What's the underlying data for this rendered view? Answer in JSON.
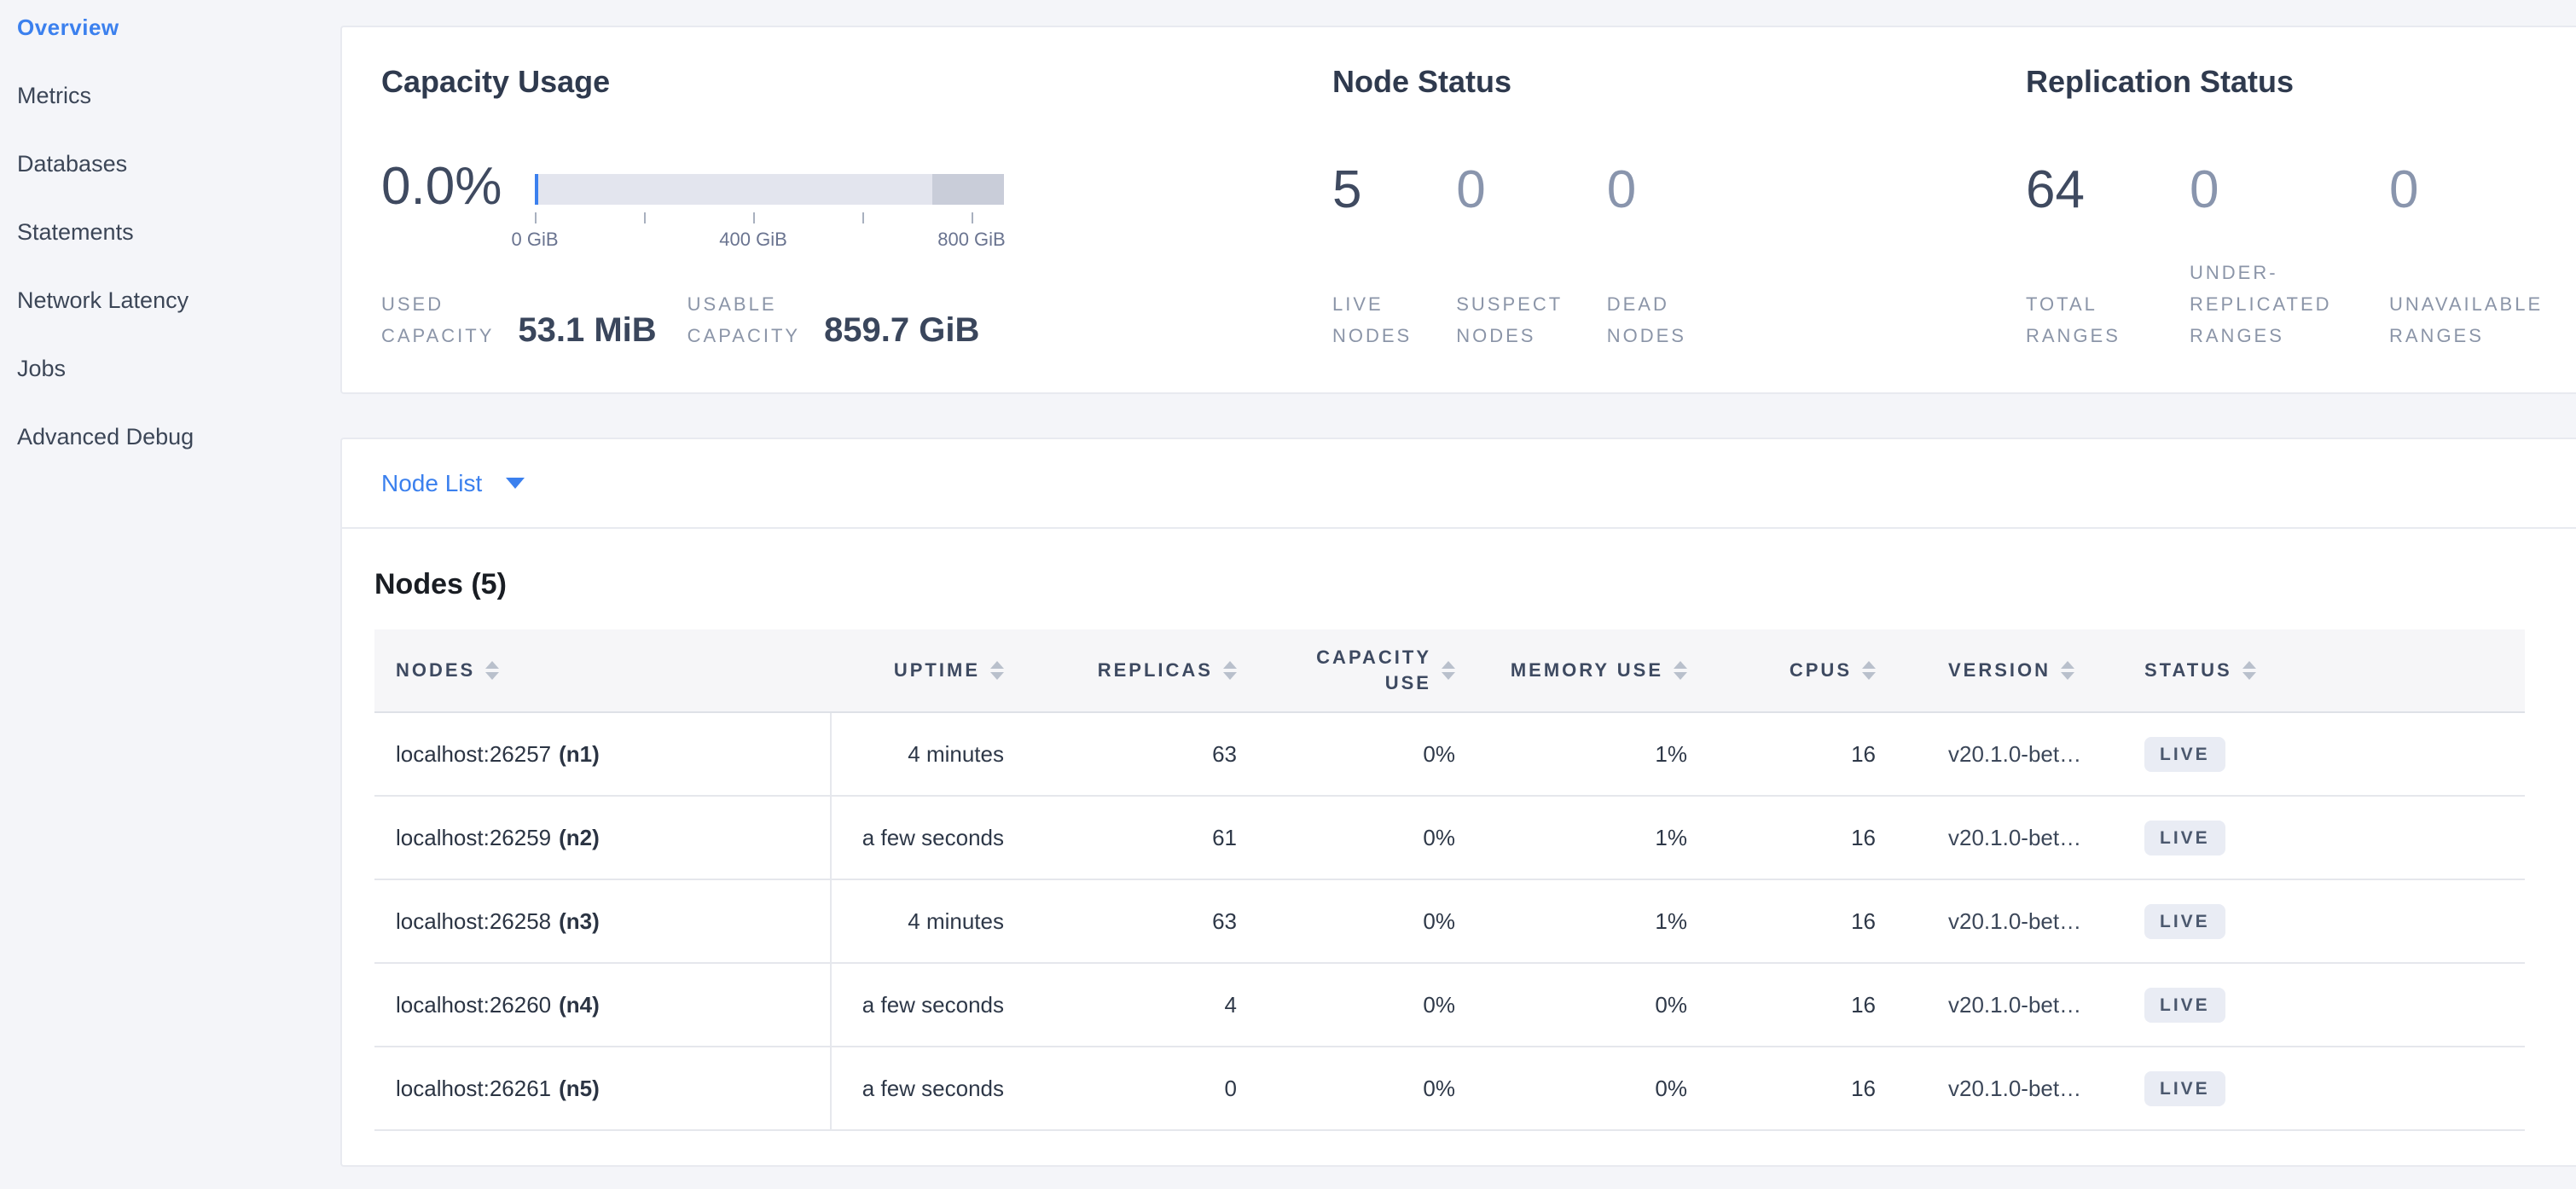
{
  "sidebar": {
    "items": [
      {
        "label": "Overview",
        "active": true
      },
      {
        "label": "Metrics",
        "active": false
      },
      {
        "label": "Databases",
        "active": false
      },
      {
        "label": "Statements",
        "active": false
      },
      {
        "label": "Network Latency",
        "active": false
      },
      {
        "label": "Jobs",
        "active": false
      },
      {
        "label": "Advanced Debug",
        "active": false
      }
    ]
  },
  "summary": {
    "capacity": {
      "title": "Capacity Usage",
      "percent": "0.0%",
      "bar": {
        "used_pct": 0.7,
        "dark_segment_pct": 15.2,
        "axis_labels": [
          {
            "text": "0 GiB",
            "pos_pct": 0
          },
          {
            "text": "400 GiB",
            "pos_pct": 46.55
          },
          {
            "text": "800 GiB",
            "pos_pct": 93.09
          }
        ]
      },
      "used_label": "USED CAPACITY",
      "used_value": "53.1 MiB",
      "usable_label": "USABLE CAPACITY",
      "usable_value": "859.7 GiB"
    },
    "node_status": {
      "title": "Node Status",
      "stats": [
        {
          "value": "5",
          "label": "LIVE NODES"
        },
        {
          "value": "0",
          "label": "SUSPECT NODES"
        },
        {
          "value": "0",
          "label": "DEAD NODES"
        }
      ]
    },
    "replication_status": {
      "title": "Replication Status",
      "stats": [
        {
          "value": "64",
          "label": "TOTAL RANGES"
        },
        {
          "value": "0",
          "label": "UNDER-REPLICATED RANGES"
        },
        {
          "value": "0",
          "label": "UNAVAILABLE RANGES"
        }
      ]
    }
  },
  "node_list": {
    "dropdown_label": "Node List",
    "table_title": "Nodes (5)",
    "columns": {
      "nodes": "NODES",
      "uptime": "UPTIME",
      "replicas": "REPLICAS",
      "capacity_use": "CAPACITY USE",
      "memory_use": "MEMORY USE",
      "cpus": "CPUS",
      "version": "VERSION",
      "status": "STATUS"
    },
    "rows": [
      {
        "addr": "localhost:26257",
        "id": "(n1)",
        "uptime": "4 minutes",
        "replicas": "63",
        "capacity_use": "0%",
        "memory_use": "1%",
        "cpus": "16",
        "version": "v20.1.0-bet…",
        "status": "LIVE"
      },
      {
        "addr": "localhost:26259",
        "id": "(n2)",
        "uptime": "a few seconds",
        "replicas": "61",
        "capacity_use": "0%",
        "memory_use": "1%",
        "cpus": "16",
        "version": "v20.1.0-bet…",
        "status": "LIVE"
      },
      {
        "addr": "localhost:26258",
        "id": "(n3)",
        "uptime": "4 minutes",
        "replicas": "63",
        "capacity_use": "0%",
        "memory_use": "1%",
        "cpus": "16",
        "version": "v20.1.0-bet…",
        "status": "LIVE"
      },
      {
        "addr": "localhost:26260",
        "id": "(n4)",
        "uptime": "a few seconds",
        "replicas": "4",
        "capacity_use": "0%",
        "memory_use": "0%",
        "cpus": "16",
        "version": "v20.1.0-bet…",
        "status": "LIVE"
      },
      {
        "addr": "localhost:26261",
        "id": "(n5)",
        "uptime": "a few seconds",
        "replicas": "0",
        "capacity_use": "0%",
        "memory_use": "0%",
        "cpus": "16",
        "version": "v20.1.0-bet…",
        "status": "LIVE"
      }
    ]
  },
  "colors": {
    "accent_blue": "#3b80ee",
    "page_background": "#f4f5f9",
    "bar_light": "#e3e5ee",
    "bar_dark": "#c9cdd9",
    "badge_background": "#e9ecf4",
    "badge_text": "#4b586e",
    "number_dark": "#3f4a60",
    "number_muted": "#8995ad"
  }
}
